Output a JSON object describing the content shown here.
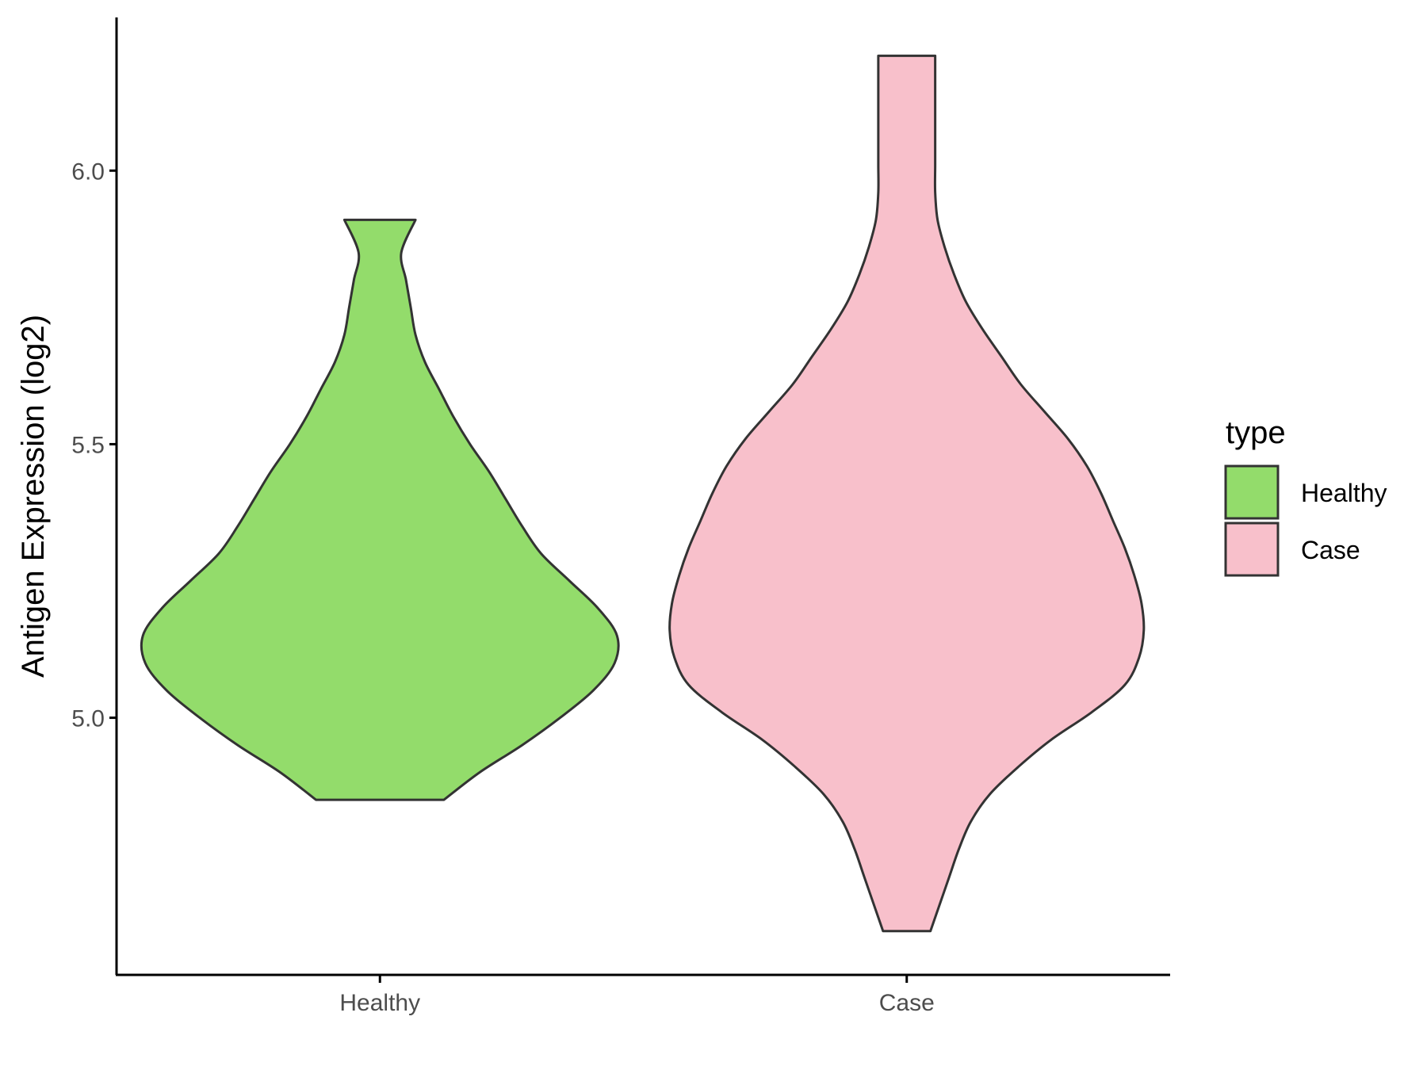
{
  "chart_data": {
    "type": "violin",
    "ylabel": "Antigen Expression (log2)",
    "xlabel": "",
    "title": "",
    "ylim": [
      4.53,
      6.28
    ],
    "yticks": [
      5.0,
      5.5,
      6.0
    ],
    "ytick_labels": [
      "5.0",
      "5.5",
      "6.0"
    ],
    "categories": [
      "Healthy",
      "Case"
    ],
    "grid": false,
    "legend": {
      "title": "type",
      "placement": "right",
      "entries": [
        {
          "label": "Healthy",
          "color": "#93dc6b"
        },
        {
          "label": "Case",
          "color": "#f8c0cb"
        }
      ]
    },
    "series": [
      {
        "category": "Healthy",
        "color": "#93dc6b",
        "min": 4.85,
        "max": 5.91,
        "density_profile": [
          [
            4.85,
            0.27
          ],
          [
            4.9,
            0.42
          ],
          [
            4.95,
            0.6
          ],
          [
            5.0,
            0.76
          ],
          [
            5.05,
            0.9
          ],
          [
            5.1,
            0.99
          ],
          [
            5.15,
            1.0
          ],
          [
            5.2,
            0.92
          ],
          [
            5.25,
            0.8
          ],
          [
            5.3,
            0.68
          ],
          [
            5.35,
            0.6
          ],
          [
            5.4,
            0.53
          ],
          [
            5.45,
            0.46
          ],
          [
            5.5,
            0.38
          ],
          [
            5.55,
            0.31
          ],
          [
            5.6,
            0.25
          ],
          [
            5.65,
            0.19
          ],
          [
            5.7,
            0.15
          ],
          [
            5.75,
            0.13
          ],
          [
            5.8,
            0.11
          ],
          [
            5.85,
            0.09
          ],
          [
            5.91,
            0.15
          ]
        ]
      },
      {
        "category": "Case",
        "color": "#f8c0cb",
        "min": 4.61,
        "max": 6.21,
        "density_profile": [
          [
            4.61,
            0.1
          ],
          [
            4.66,
            0.14
          ],
          [
            4.71,
            0.18
          ],
          [
            4.76,
            0.22
          ],
          [
            4.81,
            0.27
          ],
          [
            4.86,
            0.35
          ],
          [
            4.91,
            0.47
          ],
          [
            4.96,
            0.61
          ],
          [
            5.01,
            0.78
          ],
          [
            5.06,
            0.92
          ],
          [
            5.11,
            0.98
          ],
          [
            5.16,
            1.0
          ],
          [
            5.21,
            0.99
          ],
          [
            5.26,
            0.96
          ],
          [
            5.31,
            0.92
          ],
          [
            5.36,
            0.87
          ],
          [
            5.41,
            0.82
          ],
          [
            5.46,
            0.76
          ],
          [
            5.51,
            0.68
          ],
          [
            5.56,
            0.58
          ],
          [
            5.61,
            0.48
          ],
          [
            5.66,
            0.4
          ],
          [
            5.71,
            0.32
          ],
          [
            5.76,
            0.25
          ],
          [
            5.81,
            0.2
          ],
          [
            5.86,
            0.16
          ],
          [
            5.91,
            0.13
          ],
          [
            5.96,
            0.12
          ],
          [
            6.01,
            0.12
          ],
          [
            6.06,
            0.12
          ],
          [
            6.11,
            0.12
          ],
          [
            6.16,
            0.12
          ],
          [
            6.21,
            0.12
          ]
        ]
      }
    ]
  }
}
